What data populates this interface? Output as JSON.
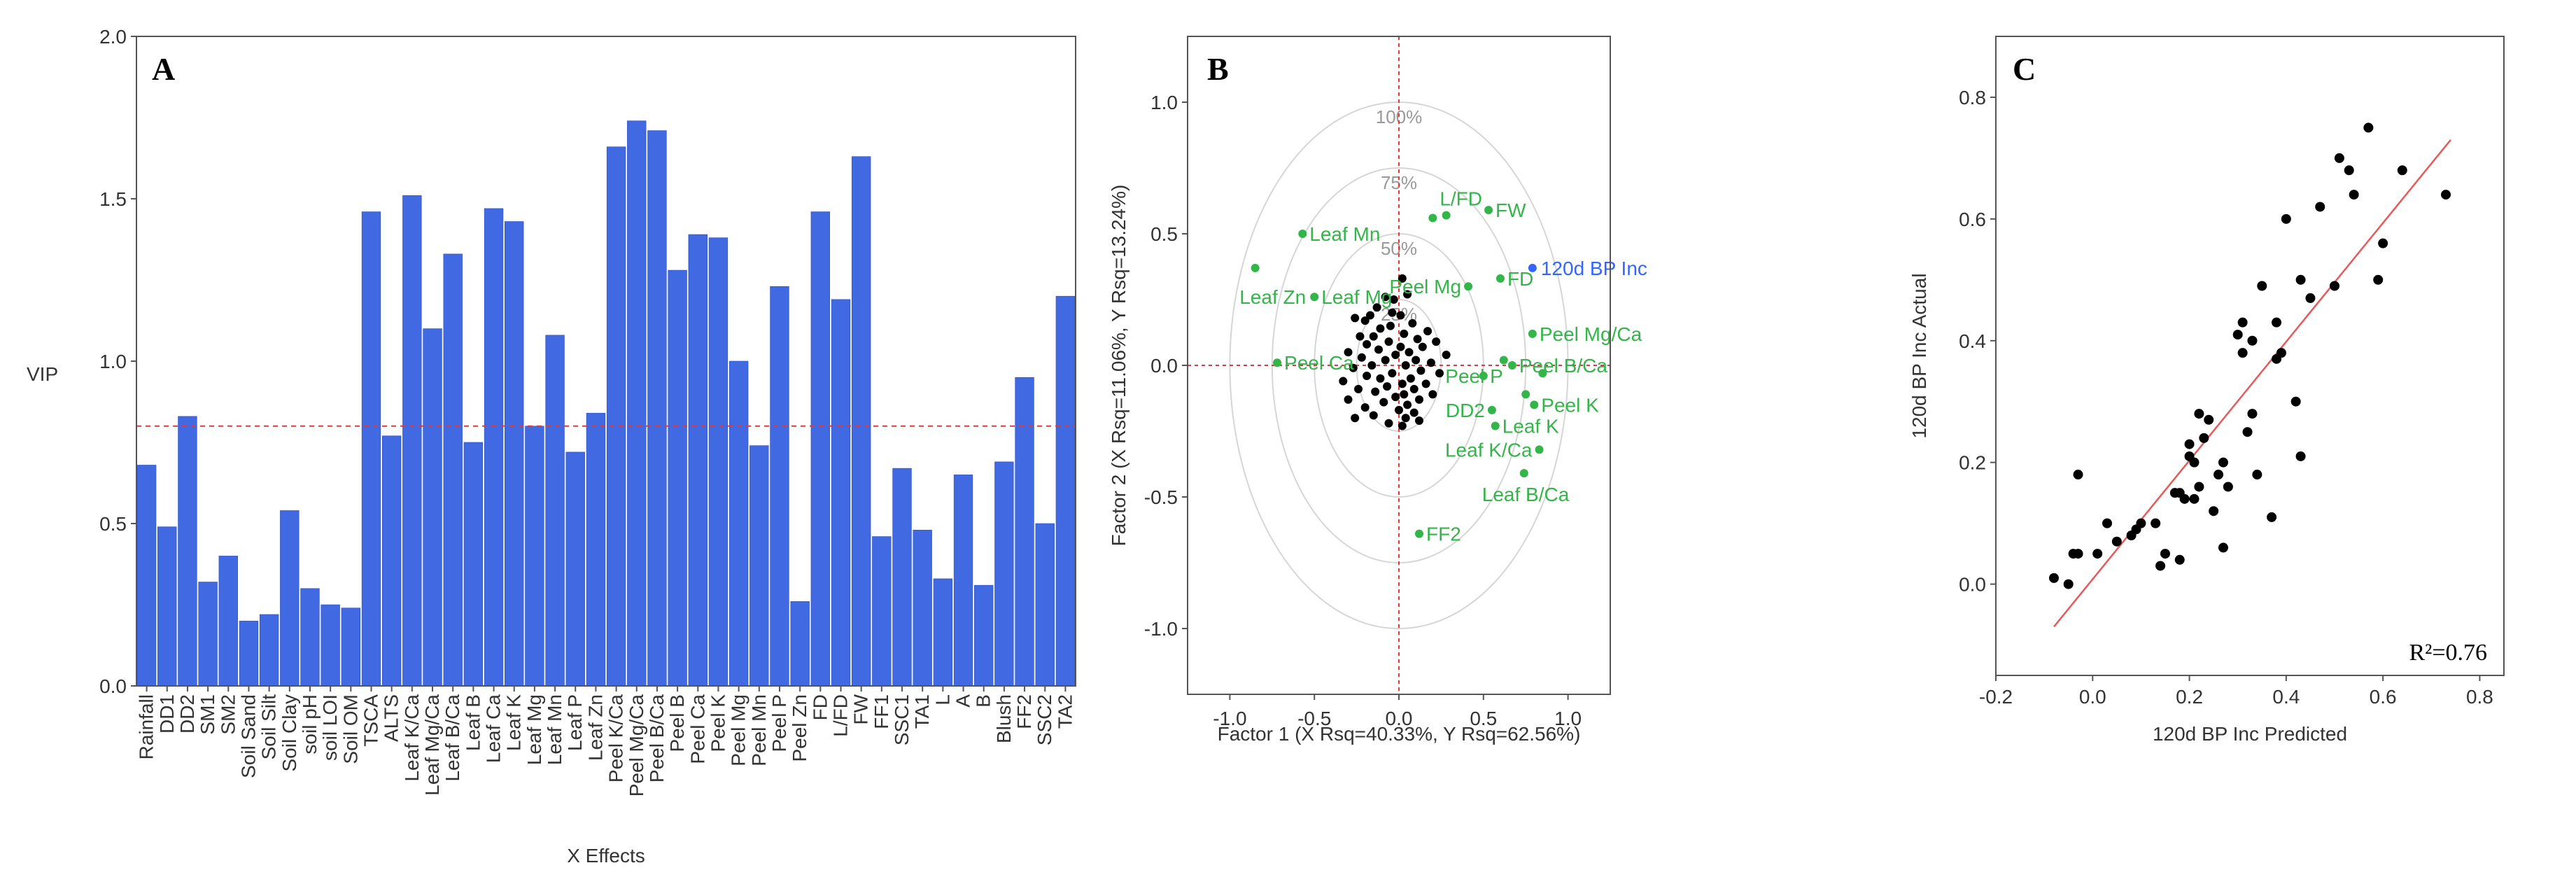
{
  "colors": {
    "bar": "#4169e1",
    "bar_edge": "#2c4fc0",
    "green": "#33b54a",
    "blue": "#3366ff",
    "black": "#000000",
    "red_dash": "#e0393a",
    "fit_line": "#e65a5a",
    "circle": "#d6d6d6",
    "axis": "#555555"
  },
  "chart_data": [
    {
      "panel": "A",
      "type": "bar",
      "title": "A",
      "xlabel": "X Effects",
      "ylabel": "VIP",
      "ylim": [
        0,
        2.0
      ],
      "yticks": [
        "0.0",
        "0.5",
        "1.0",
        "1.5",
        "2.0"
      ],
      "threshold": 0.8,
      "categories": [
        "Rainfall",
        "DD1",
        "DD2",
        "SM1",
        "SM2",
        "Soil Sand",
        "Soil Silt",
        "Soil Clay",
        "soil pH",
        "soil LOI",
        "Soil OM",
        "TSCA",
        "ALTS",
        "Leaf K/Ca",
        "Leaf Mg/Ca",
        "Leaf B/Ca",
        "Leaf B",
        "Leaf Ca",
        "Leaf K",
        "Leaf Mg",
        "Leaf Mn",
        "Leaf P",
        "Leaf Zn",
        "Peel K/Ca",
        "Peel Mg/Ca",
        "Peel B/Ca",
        "Peel B",
        "Peel Ca",
        "Peel K",
        "Peel Mg",
        "Peel Mn",
        "Peel P",
        "Peel Zn",
        "FD",
        "L/FD",
        "FW",
        "FF1",
        "SSC1",
        "TA1",
        "L",
        "A",
        "B",
        "Blush",
        "FF2",
        "SSC2",
        "TA2"
      ],
      "values": [
        0.68,
        0.49,
        0.83,
        0.32,
        0.4,
        0.2,
        0.22,
        0.54,
        0.3,
        0.25,
        0.24,
        1.46,
        0.77,
        1.51,
        1.1,
        1.33,
        0.75,
        1.47,
        1.43,
        0.8,
        1.08,
        0.72,
        0.84,
        1.66,
        1.74,
        1.71,
        1.28,
        1.39,
        1.38,
        1.0,
        0.74,
        1.23,
        0.26,
        1.46,
        1.19,
        1.63,
        0.46,
        0.67,
        0.48,
        0.33,
        0.65,
        0.31,
        0.69,
        0.95,
        0.5,
        1.2
      ]
    },
    {
      "panel": "B",
      "type": "scatter",
      "title": "B",
      "xlabel": "Factor 1 (X Rsq=40.33%, Y Rsq=62.56%)",
      "ylabel": "Factor 2 (X Rsq=11.06%, Y Rsq=13.24%)",
      "xlim": [
        -1.25,
        1.25
      ],
      "ylim": [
        -1.25,
        1.25
      ],
      "xticks": [
        "-1.0",
        "-0.5",
        "0.0",
        "0.5",
        "1.0"
      ],
      "yticks": [
        "1.0",
        "0.5",
        "0.0",
        "-0.5",
        "-1.0"
      ],
      "circles": [
        {
          "r": 0.25,
          "label": "25%"
        },
        {
          "r": 0.5,
          "label": "50%"
        },
        {
          "r": 0.75,
          "label": "75%"
        },
        {
          "r": 1.0,
          "label": "100%"
        }
      ],
      "loadings": [
        {
          "x": -0.85,
          "y": 0.37,
          "label": ""
        },
        {
          "x": -0.57,
          "y": 0.5,
          "label": "Leaf Mn"
        },
        {
          "x": -0.5,
          "y": 0.26,
          "label": "Leaf Mg"
        },
        {
          "x": -0.72,
          "y": 0.01,
          "label": "Peel Ca"
        },
        {
          "x": 0.2,
          "y": 0.56,
          "label": "L/FD"
        },
        {
          "x": 0.28,
          "y": 0.57,
          "label": ""
        },
        {
          "x": 0.53,
          "y": 0.59,
          "label": "FW"
        },
        {
          "x": 0.6,
          "y": 0.33,
          "label": "FD"
        },
        {
          "x": 0.41,
          "y": 0.3,
          "label": "Peel Mg"
        },
        {
          "x": 0.79,
          "y": 0.12,
          "label": "Peel Mg/Ca"
        },
        {
          "x": 0.5,
          "y": -0.04,
          "label": "Peel   P"
        },
        {
          "x": 0.62,
          "y": 0.02,
          "label": ""
        },
        {
          "x": 0.67,
          "y": 0.0,
          "label": "Peel B/Ca"
        },
        {
          "x": 0.85,
          "y": -0.03,
          "label": ""
        },
        {
          "x": 0.75,
          "y": -0.11,
          "label": ""
        },
        {
          "x": 0.8,
          "y": -0.15,
          "label": "Peel K"
        },
        {
          "x": 0.55,
          "y": -0.17,
          "label": "DD2"
        },
        {
          "x": 0.57,
          "y": -0.23,
          "label": "Leaf K"
        },
        {
          "x": 0.83,
          "y": -0.32,
          "label": "Leaf K/Ca"
        },
        {
          "x": 0.74,
          "y": -0.41,
          "label": "Leaf B/Ca"
        },
        {
          "x": 0.12,
          "y": -0.64,
          "label": "FF2"
        }
      ],
      "response": {
        "x": 0.79,
        "y": 0.37,
        "label": "120d BP Inc"
      },
      "scores": [
        [
          0.02,
          0.33
        ],
        [
          -0.08,
          0.26
        ],
        [
          -0.03,
          0.25
        ],
        [
          0.05,
          0.27
        ],
        [
          -0.13,
          0.22
        ],
        [
          -0.04,
          0.2
        ],
        [
          0.01,
          0.19
        ],
        [
          -0.17,
          0.19
        ],
        [
          -0.26,
          0.18
        ],
        [
          -0.2,
          0.17
        ],
        [
          0.08,
          0.16
        ],
        [
          -0.05,
          0.15
        ],
        [
          -0.11,
          0.14
        ],
        [
          0.17,
          0.13
        ],
        [
          0.03,
          0.12
        ],
        [
          -0.23,
          0.11
        ],
        [
          -0.15,
          0.11
        ],
        [
          0.11,
          0.1
        ],
        [
          -0.06,
          0.09
        ],
        [
          0.22,
          0.09
        ],
        [
          -0.19,
          0.08
        ],
        [
          0.01,
          0.07
        ],
        [
          0.14,
          0.07
        ],
        [
          -0.12,
          0.06
        ],
        [
          -0.3,
          0.05
        ],
        [
          0.06,
          0.05
        ],
        [
          -0.02,
          0.04
        ],
        [
          0.28,
          0.04
        ],
        [
          -0.22,
          0.03
        ],
        [
          0.1,
          0.02
        ],
        [
          -0.08,
          0.02
        ],
        [
          0.19,
          0.01
        ],
        [
          -0.16,
          0.0
        ],
        [
          0.04,
          0.0
        ],
        [
          -0.27,
          -0.01
        ],
        [
          0.13,
          -0.02
        ],
        [
          -0.04,
          -0.03
        ],
        [
          0.24,
          -0.03
        ],
        [
          -0.19,
          -0.04
        ],
        [
          0.07,
          -0.05
        ],
        [
          -0.11,
          -0.05
        ],
        [
          -0.33,
          -0.06
        ],
        [
          0.02,
          -0.07
        ],
        [
          0.16,
          -0.07
        ],
        [
          -0.07,
          -0.08
        ],
        [
          -0.24,
          -0.09
        ],
        [
          0.09,
          -0.09
        ],
        [
          -0.14,
          -0.1
        ],
        [
          0.03,
          -0.11
        ],
        [
          0.2,
          -0.11
        ],
        [
          -0.02,
          -0.12
        ],
        [
          -0.3,
          -0.13
        ],
        [
          0.12,
          -0.13
        ],
        [
          -0.09,
          -0.14
        ],
        [
          0.05,
          -0.15
        ],
        [
          -0.2,
          -0.16
        ],
        [
          0.0,
          -0.17
        ],
        [
          0.09,
          -0.18
        ],
        [
          -0.15,
          -0.19
        ],
        [
          0.04,
          -0.2
        ],
        [
          -0.26,
          -0.2
        ],
        [
          0.12,
          -0.21
        ],
        [
          -0.06,
          -0.22
        ],
        [
          0.02,
          -0.23
        ]
      ]
    },
    {
      "panel": "C",
      "type": "scatter",
      "title": "C",
      "xlabel": "120d BP Inc Predicted",
      "ylabel": "120d BP Inc Actual",
      "xlim": [
        -0.2,
        0.85
      ],
      "ylim": [
        -0.15,
        0.9
      ],
      "xticks": [
        "-0.2",
        "0.0",
        "0.2",
        "0.4",
        "0.6",
        "0.8"
      ],
      "yticks": [
        "0.0",
        "0.2",
        "0.4",
        "0.6",
        "0.8"
      ],
      "annotation": "R²=0.76",
      "fit_line": {
        "x": [
          -0.08,
          0.74
        ],
        "y": [
          -0.07,
          0.73
        ]
      },
      "points": [
        [
          -0.08,
          0.01
        ],
        [
          -0.05,
          0.0
        ],
        [
          -0.04,
          0.05
        ],
        [
          -0.03,
          0.05
        ],
        [
          -0.03,
          0.18
        ],
        [
          0.01,
          0.05
        ],
        [
          0.03,
          0.1
        ],
        [
          0.05,
          0.07
        ],
        [
          0.08,
          0.08
        ],
        [
          0.09,
          0.09
        ],
        [
          0.1,
          0.1
        ],
        [
          0.13,
          0.1
        ],
        [
          0.14,
          0.03
        ],
        [
          0.15,
          0.05
        ],
        [
          0.17,
          0.15
        ],
        [
          0.18,
          0.04
        ],
        [
          0.18,
          0.15
        ],
        [
          0.19,
          0.14
        ],
        [
          0.2,
          0.21
        ],
        [
          0.2,
          0.23
        ],
        [
          0.21,
          0.2
        ],
        [
          0.21,
          0.14
        ],
        [
          0.22,
          0.16
        ],
        [
          0.22,
          0.28
        ],
        [
          0.23,
          0.24
        ],
        [
          0.24,
          0.27
        ],
        [
          0.25,
          0.12
        ],
        [
          0.26,
          0.18
        ],
        [
          0.27,
          0.06
        ],
        [
          0.27,
          0.2
        ],
        [
          0.28,
          0.16
        ],
        [
          0.3,
          0.41
        ],
        [
          0.31,
          0.43
        ],
        [
          0.31,
          0.38
        ],
        [
          0.32,
          0.25
        ],
        [
          0.33,
          0.28
        ],
        [
          0.33,
          0.4
        ],
        [
          0.34,
          0.18
        ],
        [
          0.35,
          0.49
        ],
        [
          0.37,
          0.11
        ],
        [
          0.38,
          0.37
        ],
        [
          0.38,
          0.43
        ],
        [
          0.39,
          0.38
        ],
        [
          0.4,
          0.6
        ],
        [
          0.42,
          0.3
        ],
        [
          0.43,
          0.21
        ],
        [
          0.43,
          0.5
        ],
        [
          0.45,
          0.47
        ],
        [
          0.47,
          0.62
        ],
        [
          0.5,
          0.49
        ],
        [
          0.51,
          0.7
        ],
        [
          0.53,
          0.68
        ],
        [
          0.54,
          0.64
        ],
        [
          0.57,
          0.75
        ],
        [
          0.59,
          0.5
        ],
        [
          0.6,
          0.56
        ],
        [
          0.64,
          0.68
        ],
        [
          0.73,
          0.64
        ]
      ]
    }
  ]
}
